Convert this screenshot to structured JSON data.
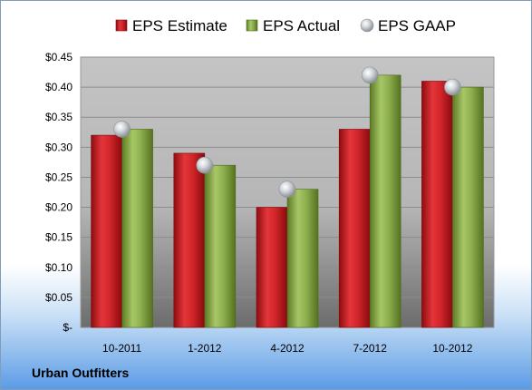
{
  "company": "Urban Outfitters",
  "chart_data": {
    "type": "bar",
    "categories": [
      "10-2011",
      "1-2012",
      "4-2012",
      "7-2012",
      "10-2012"
    ],
    "series": [
      {
        "name": "EPS Estimate",
        "kind": "bar",
        "color": "#c0151b",
        "values": [
          0.32,
          0.29,
          0.2,
          0.33,
          0.41
        ]
      },
      {
        "name": "EPS Actual",
        "kind": "bar",
        "color": "#7a9a3a",
        "values": [
          0.33,
          0.27,
          0.23,
          0.42,
          0.4
        ]
      },
      {
        "name": "EPS GAAP",
        "kind": "marker",
        "color": "#b8bec6",
        "values": [
          0.33,
          0.27,
          0.23,
          0.42,
          0.4
        ]
      }
    ],
    "yticks": [
      "$-",
      "$0.05",
      "$0.10",
      "$0.15",
      "$0.20",
      "$0.25",
      "$0.30",
      "$0.35",
      "$0.40",
      "$0.45"
    ],
    "ylim": [
      0,
      0.45
    ],
    "grid": true,
    "legend_position": "top"
  }
}
